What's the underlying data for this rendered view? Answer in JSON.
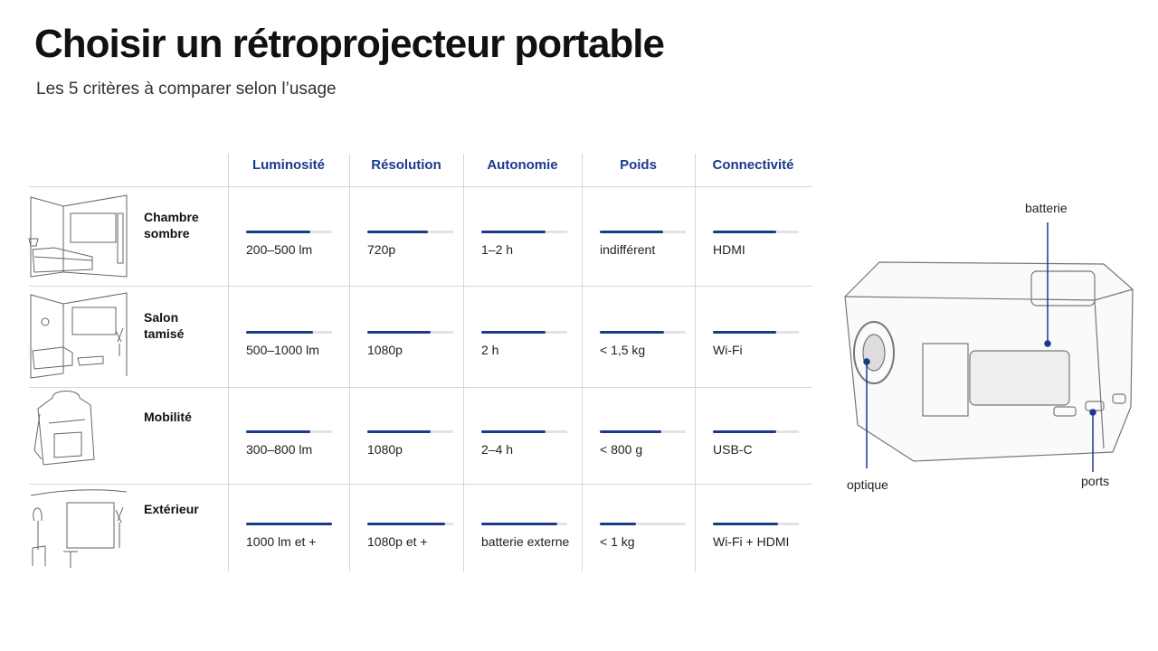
{
  "header": {
    "title": "Choisir un rétroprojecteur portable",
    "subtitle": "Les 5 critères à comparer selon l’usage"
  },
  "table": {
    "columns": [
      "Luminosité",
      "Résolution",
      "Autonomie",
      "Poids",
      "Connectivité"
    ],
    "rows": [
      {
        "label": "Chambre sombre",
        "cells": [
          {
            "text": "200–500 lm",
            "level": 0.75
          },
          {
            "text": "720p",
            "level": 0.7
          },
          {
            "text": "1–2 h",
            "level": 0.75
          },
          {
            "text": "indifférent",
            "level": 0.74
          },
          {
            "text": "HDMI",
            "level": 0.74
          }
        ]
      },
      {
        "label": "Salon tamisé",
        "cells": [
          {
            "text": "500–1000 lm",
            "level": 0.78
          },
          {
            "text": "1080p",
            "level": 0.74
          },
          {
            "text": "2 h",
            "level": 0.75
          },
          {
            "text": "< 1,5 kg",
            "level": 0.75
          },
          {
            "text": "Wi-Fi",
            "level": 0.74
          }
        ]
      },
      {
        "label": "Mobilité",
        "cells": [
          {
            "text": "300–800 lm",
            "level": 0.75
          },
          {
            "text": "1080p",
            "level": 0.74
          },
          {
            "text": "2–4 h",
            "level": 0.75
          },
          {
            "text": "< 800 g",
            "level": 0.72
          },
          {
            "text": "USB-C",
            "level": 0.74
          }
        ]
      },
      {
        "label": "Extérieur",
        "cells": [
          {
            "text": "1000 lm et +",
            "level": 1
          },
          {
            "text": "1080p et +",
            "level": 0.9
          },
          {
            "text": "batterie externe",
            "level": 0.88
          },
          {
            "text": "< 1 kg",
            "level": 0.42
          },
          {
            "text": "Wi-Fi + HDMI",
            "level": 0.76
          }
        ]
      }
    ]
  },
  "diagram": {
    "labels": {
      "battery": "batterie",
      "lens": "optique",
      "ports": "ports"
    }
  }
}
